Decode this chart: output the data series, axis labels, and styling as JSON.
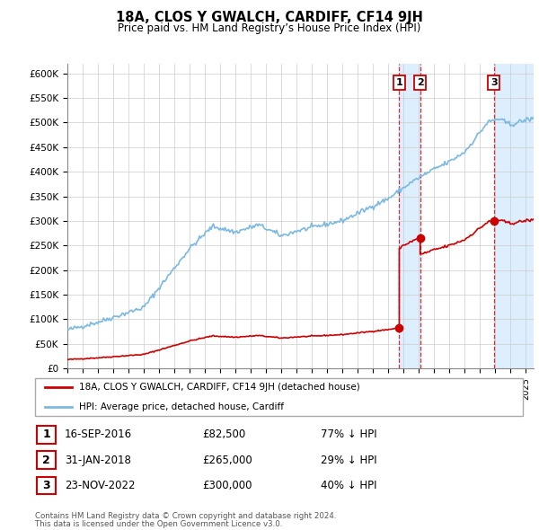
{
  "title": "18A, CLOS Y GWALCH, CARDIFF, CF14 9JH",
  "subtitle": "Price paid vs. HM Land Registry’s House Price Index (HPI)",
  "ylabel_ticks": [
    "£0",
    "£50K",
    "£100K",
    "£150K",
    "£200K",
    "£250K",
    "£300K",
    "£350K",
    "£400K",
    "£450K",
    "£500K",
    "£550K",
    "£600K"
  ],
  "ytick_vals": [
    0,
    50000,
    100000,
    150000,
    200000,
    250000,
    300000,
    350000,
    400000,
    450000,
    500000,
    550000,
    600000
  ],
  "ylim": [
    0,
    620000
  ],
  "xlim_start": 1995.0,
  "xlim_end": 2025.5,
  "hpi_color": "#7cb9e0",
  "property_color": "#cc0000",
  "sales": [
    {
      "date_num": 2016.71,
      "price": 82500,
      "label": "1",
      "date_str": "16-SEP-2016",
      "pct": "77% ↓ HPI"
    },
    {
      "date_num": 2018.08,
      "price": 265000,
      "label": "2",
      "date_str": "31-JAN-2018",
      "pct": "29% ↓ HPI"
    },
    {
      "date_num": 2022.9,
      "price": 300000,
      "label": "3",
      "date_str": "23-NOV-2022",
      "pct": "40% ↓ HPI"
    }
  ],
  "legend_property": "18A, CLOS Y GWALCH, CARDIFF, CF14 9JH (detached house)",
  "legend_hpi": "HPI: Average price, detached house, Cardiff",
  "footer1": "Contains HM Land Registry data © Crown copyright and database right 2024.",
  "footer2": "This data is licensed under the Open Government Licence v3.0.",
  "background_color": "#ffffff",
  "grid_color": "#cccccc",
  "highlight_color": "#ddeeff"
}
